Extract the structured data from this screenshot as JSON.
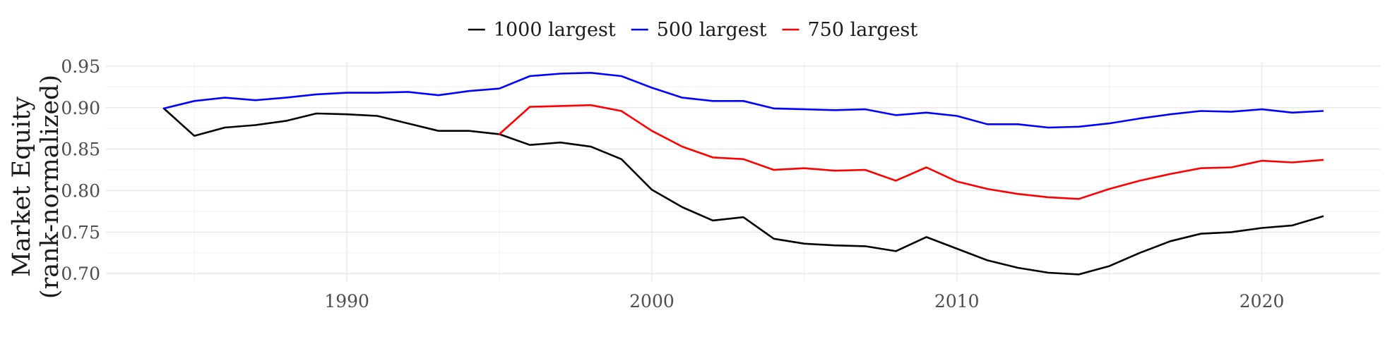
{
  "chart_data": {
    "type": "line",
    "title": "",
    "xlabel": "",
    "ylabel": [
      "Market Equity",
      "(rank-normalized)"
    ],
    "xlim": [
      1982.1,
      2023.9
    ],
    "ylim": [
      0.69,
      0.955
    ],
    "x_ticks": [
      1990,
      2000,
      2010,
      2020
    ],
    "y_ticks": [
      0.7,
      0.75,
      0.8,
      0.85,
      0.9,
      0.95
    ],
    "grid": true,
    "legend_position": "top",
    "series": [
      {
        "name": "1000 largest",
        "color": "#000000",
        "x": [
          1984,
          1985,
          1986,
          1987,
          1988,
          1989,
          1990,
          1991,
          1992,
          1993,
          1994,
          1995,
          1996,
          1997,
          1998,
          1999,
          2000,
          2001,
          2002,
          2003,
          2004,
          2005,
          2006,
          2007,
          2008,
          2009,
          2010,
          2011,
          2012,
          2013,
          2014,
          2015,
          2016,
          2017,
          2018,
          2019,
          2020,
          2021,
          2022
        ],
        "values": [
          0.899,
          0.866,
          0.876,
          0.879,
          0.884,
          0.893,
          0.892,
          0.89,
          0.881,
          0.872,
          0.872,
          0.868,
          0.855,
          0.858,
          0.853,
          0.838,
          0.801,
          0.78,
          0.764,
          0.768,
          0.742,
          0.736,
          0.734,
          0.733,
          0.727,
          0.744,
          0.73,
          0.716,
          0.707,
          0.701,
          0.699,
          0.709,
          0.725,
          0.739,
          0.748,
          0.75,
          0.755,
          0.758,
          0.769
        ]
      },
      {
        "name": "500 largest",
        "color": "#0000ff",
        "x": [
          1984,
          1985,
          1986,
          1987,
          1988,
          1989,
          1990,
          1991,
          1992,
          1993,
          1994,
          1995,
          1996,
          1997,
          1998,
          1999,
          2000,
          2001,
          2002,
          2003,
          2004,
          2005,
          2006,
          2007,
          2008,
          2009,
          2010,
          2011,
          2012,
          2013,
          2014,
          2015,
          2016,
          2017,
          2018,
          2019,
          2020,
          2021,
          2022
        ],
        "values": [
          0.899,
          0.908,
          0.912,
          0.909,
          0.912,
          0.916,
          0.918,
          0.918,
          0.919,
          0.915,
          0.92,
          0.923,
          0.938,
          0.941,
          0.942,
          0.938,
          0.924,
          0.912,
          0.908,
          0.908,
          0.899,
          0.898,
          0.897,
          0.898,
          0.891,
          0.894,
          0.89,
          0.88,
          0.88,
          0.876,
          0.877,
          0.881,
          0.887,
          0.892,
          0.896,
          0.895,
          0.898,
          0.894,
          0.896
        ]
      },
      {
        "name": "750 largest",
        "color": "#ff0000",
        "x": [
          1995,
          1996,
          1997,
          1998,
          1999,
          2000,
          2001,
          2002,
          2003,
          2004,
          2005,
          2006,
          2007,
          2008,
          2009,
          2010,
          2011,
          2012,
          2013,
          2014,
          2015,
          2016,
          2017,
          2018,
          2019,
          2020,
          2021,
          2022
        ],
        "values": [
          0.868,
          0.901,
          0.902,
          0.903,
          0.896,
          0.872,
          0.853,
          0.84,
          0.838,
          0.825,
          0.827,
          0.824,
          0.825,
          0.812,
          0.828,
          0.811,
          0.802,
          0.796,
          0.792,
          0.79,
          0.802,
          0.812,
          0.82,
          0.827,
          0.828,
          0.836,
          0.834,
          0.837
        ]
      }
    ]
  }
}
